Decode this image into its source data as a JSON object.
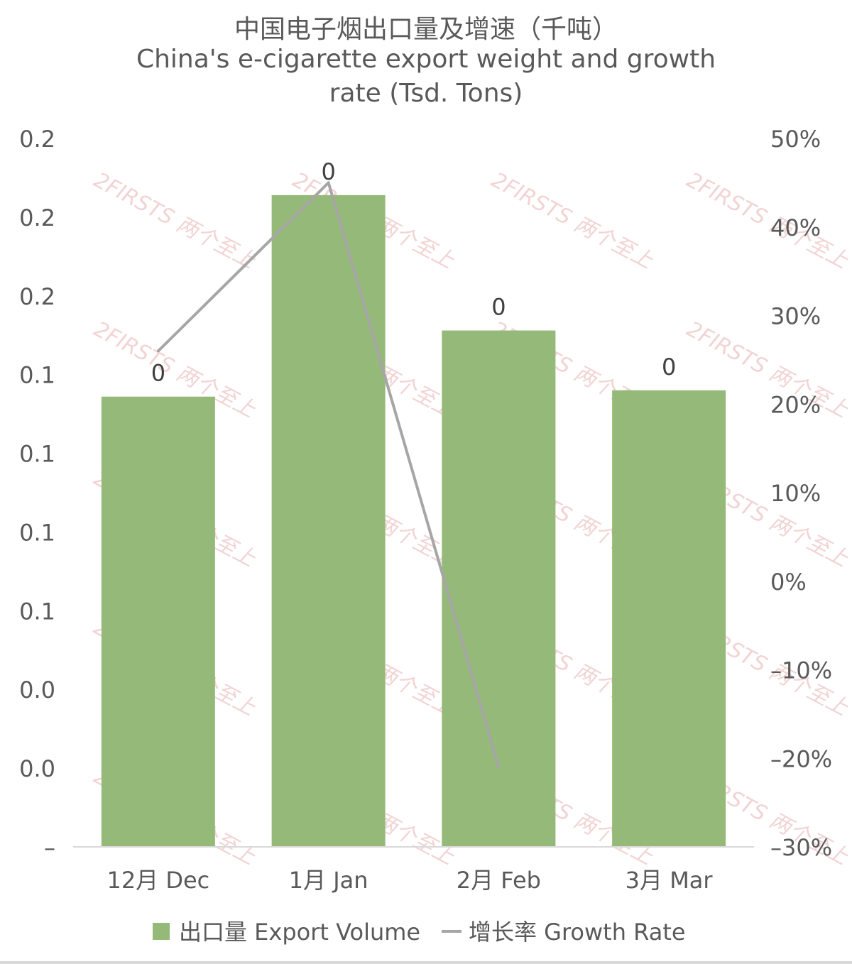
{
  "chart_data": {
    "type": "bar",
    "title_cn": "中国电子烟出口量及增速（千吨）",
    "title_en": "China's e-cigarette export weight and growth rate (Tsd. Tons)",
    "categories": [
      "12月 Dec",
      "1月 Jan",
      "2月 Feb",
      "3月 Mar"
    ],
    "series": [
      {
        "name": "出口量 Export Volume",
        "type": "bar",
        "axis": "left",
        "color": "#95b978",
        "values": [
          0.143,
          0.207,
          0.164,
          0.145
        ],
        "data_labels": [
          "0",
          "0",
          "0",
          "0"
        ]
      },
      {
        "name": "增长率 Growth Rate",
        "type": "line",
        "axis": "right",
        "color": "#a6a6a6",
        "values": [
          26,
          45,
          -21,
          null
        ]
      }
    ],
    "y_left": {
      "ylim": [
        0,
        0.225
      ],
      "ticks": [
        0,
        0.025,
        0.05,
        0.075,
        0.1,
        0.125,
        0.15,
        0.175,
        0.2,
        0.225
      ],
      "tick_labels": [
        "–",
        "0.0",
        "0.0",
        "0.1",
        "0.1",
        "0.1",
        "0.1",
        "0.2",
        "0.2",
        "0.2"
      ]
    },
    "y_right": {
      "ylim": [
        -30,
        50
      ],
      "ticks": [
        -30,
        -20,
        -10,
        0,
        10,
        20,
        30,
        40,
        50
      ],
      "tick_labels": [
        "–30%",
        "–20%",
        "–10%",
        "0%",
        "10%",
        "20%",
        "30%",
        "40%",
        "50%"
      ]
    },
    "grid": false,
    "legend_position": "bottom",
    "watermark": "2FIRSTS 两个至上"
  }
}
